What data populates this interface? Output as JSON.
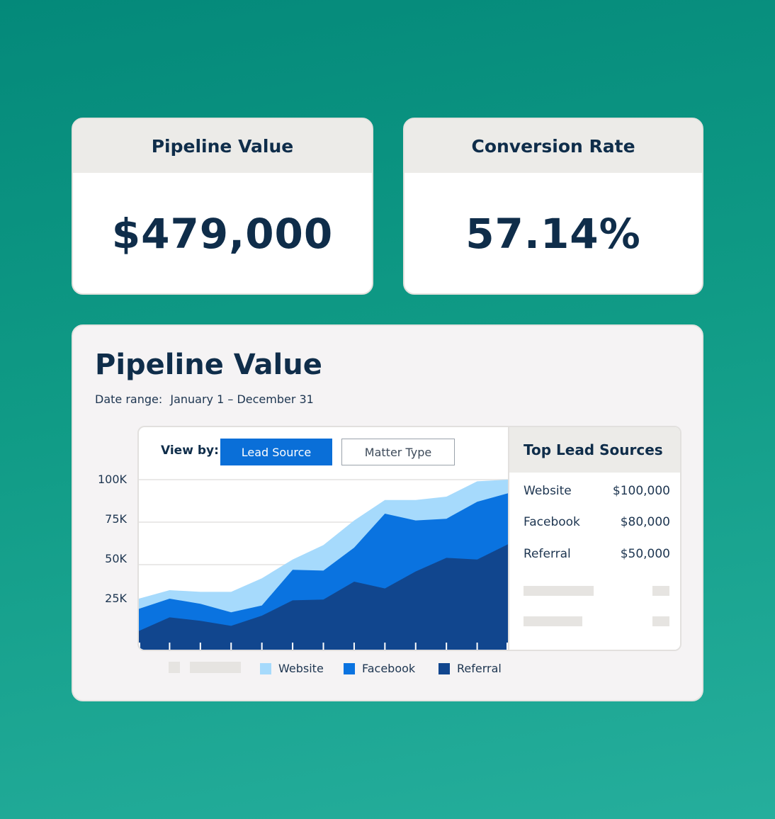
{
  "kpis": [
    {
      "title": "Pipeline Value",
      "value": "$479,000"
    },
    {
      "title": "Conversion Rate",
      "value": "57.14%"
    }
  ],
  "panel": {
    "title": "Pipeline Value",
    "date_range_label": "Date range:",
    "date_range_value": "January 1 – December 31",
    "view_by_label": "View by:",
    "view_options": [
      {
        "label": "Lead Source",
        "selected": true
      },
      {
        "label": "Matter Type",
        "selected": false
      }
    ]
  },
  "top_sources": {
    "title": "Top Lead Sources",
    "items": [
      {
        "name": "Website",
        "value": "$100,000"
      },
      {
        "name": "Facebook",
        "value": "$80,000"
      },
      {
        "name": "Referral",
        "value": "$50,000"
      }
    ]
  },
  "colors": {
    "website": "#a6dafc",
    "facebook": "#0a73e0",
    "referral": "#11468e",
    "accent": "#0a6fd8"
  },
  "chart_data": {
    "type": "area",
    "stacked": true,
    "y_tick_labels": [
      "100K",
      "75K",
      "50K",
      "25K"
    ],
    "ylim": [
      0,
      100000
    ],
    "x": [
      0,
      1,
      2,
      3,
      4,
      5,
      6,
      7,
      8,
      9,
      10,
      11,
      12
    ],
    "series": [
      {
        "name": "Referral",
        "color": "#11468e",
        "values": [
          11000,
          19000,
          17000,
          14000,
          20000,
          29000,
          29500,
          40000,
          36000,
          46000,
          54000,
          53000,
          62000
        ]
      },
      {
        "name": "Facebook",
        "color": "#0a73e0",
        "values": [
          13000,
          11000,
          10000,
          8000,
          6000,
          18000,
          17000,
          20000,
          44000,
          30000,
          23000,
          34000,
          30000
        ]
      },
      {
        "name": "Website",
        "color": "#a6dafc",
        "values": [
          6000,
          5000,
          7000,
          12000,
          16000,
          6000,
          15000,
          16000,
          8000,
          12000,
          13000,
          12000,
          8000
        ]
      }
    ],
    "legend": [
      "Website",
      "Facebook",
      "Referral"
    ],
    "grid": true
  }
}
